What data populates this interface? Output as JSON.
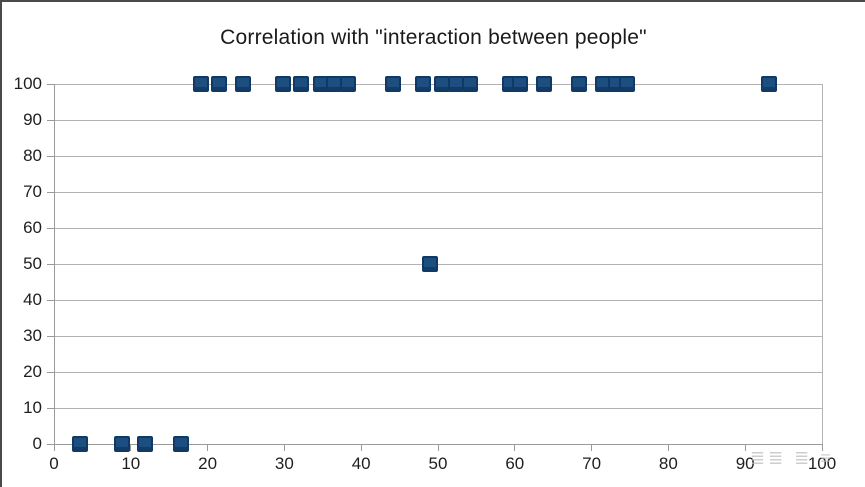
{
  "window": {
    "background": "#ffffff",
    "frame_border_color": "#4a4a4a"
  },
  "chart_data": {
    "type": "scatter",
    "title": "Correlation with \"interaction between people\"",
    "xlabel": "",
    "ylabel": "",
    "xlim": [
      0,
      100
    ],
    "ylim": [
      0,
      100
    ],
    "x_ticks": [
      0,
      10,
      20,
      30,
      40,
      50,
      60,
      70,
      80,
      90,
      100
    ],
    "y_ticks": [
      0,
      10,
      20,
      30,
      40,
      50,
      60,
      70,
      80,
      90,
      100
    ],
    "grid": "horizontal-major",
    "legend_position": "none",
    "marker": {
      "shape": "square",
      "fill": "#1c4e80",
      "border": "#103a66"
    },
    "series": [
      {
        "points": [
          [
            3.4,
            0
          ],
          [
            8.9,
            0
          ],
          [
            11.8,
            0
          ],
          [
            16.6,
            0
          ],
          [
            19.1,
            100
          ],
          [
            21.5,
            100
          ],
          [
            24.6,
            100
          ],
          [
            29.8,
            100
          ],
          [
            32.2,
            100
          ],
          [
            34.8,
            100
          ],
          [
            36.5,
            100
          ],
          [
            38.3,
            100
          ],
          [
            44.2,
            100
          ],
          [
            48.0,
            100
          ],
          [
            49.0,
            50
          ],
          [
            50.5,
            100
          ],
          [
            52.3,
            100
          ],
          [
            54.2,
            100
          ],
          [
            59.4,
            100
          ],
          [
            60.7,
            100
          ],
          [
            63.8,
            100
          ],
          [
            68.3,
            100
          ],
          [
            71.5,
            100
          ],
          [
            73.2,
            100
          ],
          [
            74.6,
            100
          ],
          [
            93.1,
            100
          ]
        ]
      }
    ]
  },
  "colors": {
    "gridline": "#b3b3b3",
    "axis": "#9a9a9a",
    "tick_text": "#1f1f1f",
    "title_text": "#1a1a1a",
    "watermark": "#bdbdbd"
  },
  "watermark": {
    "text": "≣≣ ≣ ≡"
  }
}
